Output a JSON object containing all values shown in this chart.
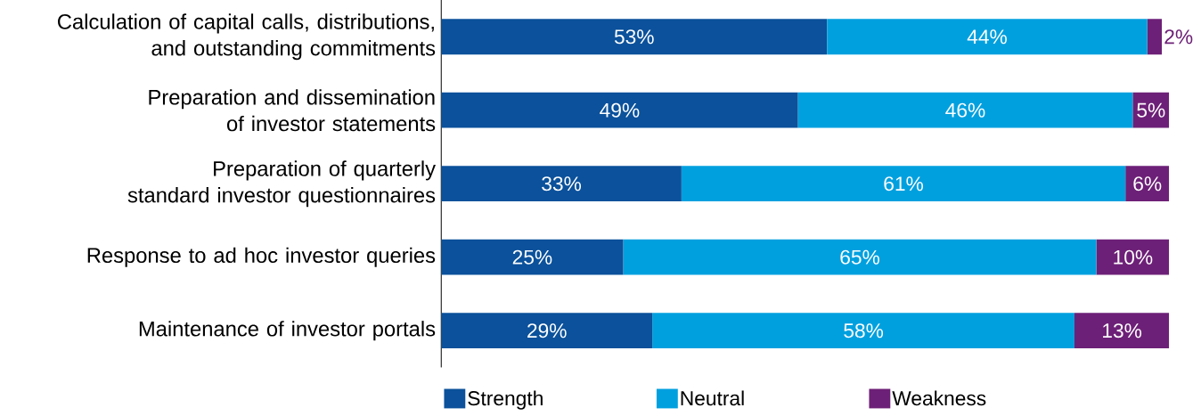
{
  "chart_data": {
    "type": "bar",
    "orientation": "horizontal",
    "stacked": true,
    "categories": [
      "Calculation of capital calls, distributions, and outstanding commitments",
      "Preparation and dissemination of investor statements",
      "Preparation of quarterly standard investor questionnaires",
      "Response to ad hoc investor queries",
      "Maintenance of investor portals"
    ],
    "series": [
      {
        "name": "Strength",
        "color": "#0b519b",
        "values": [
          53,
          49,
          33,
          25,
          29
        ],
        "value_labels": [
          "53%",
          "49%",
          "33%",
          "25%",
          "29%"
        ]
      },
      {
        "name": "Neutral",
        "color": "#00a0df",
        "values": [
          44,
          46,
          61,
          65,
          58
        ],
        "value_labels": [
          "44%",
          "46%",
          "61%",
          "65%",
          "58%"
        ]
      },
      {
        "name": "Weakness",
        "color": "#6d2077",
        "values": [
          2,
          5,
          6,
          10,
          13
        ],
        "value_labels": [
          "2%",
          "5%",
          "6%",
          "10%",
          "13%"
        ]
      }
    ],
    "xlim": [
      0,
      100
    ],
    "tick_labels": "y",
    "legend": "bottom"
  }
}
